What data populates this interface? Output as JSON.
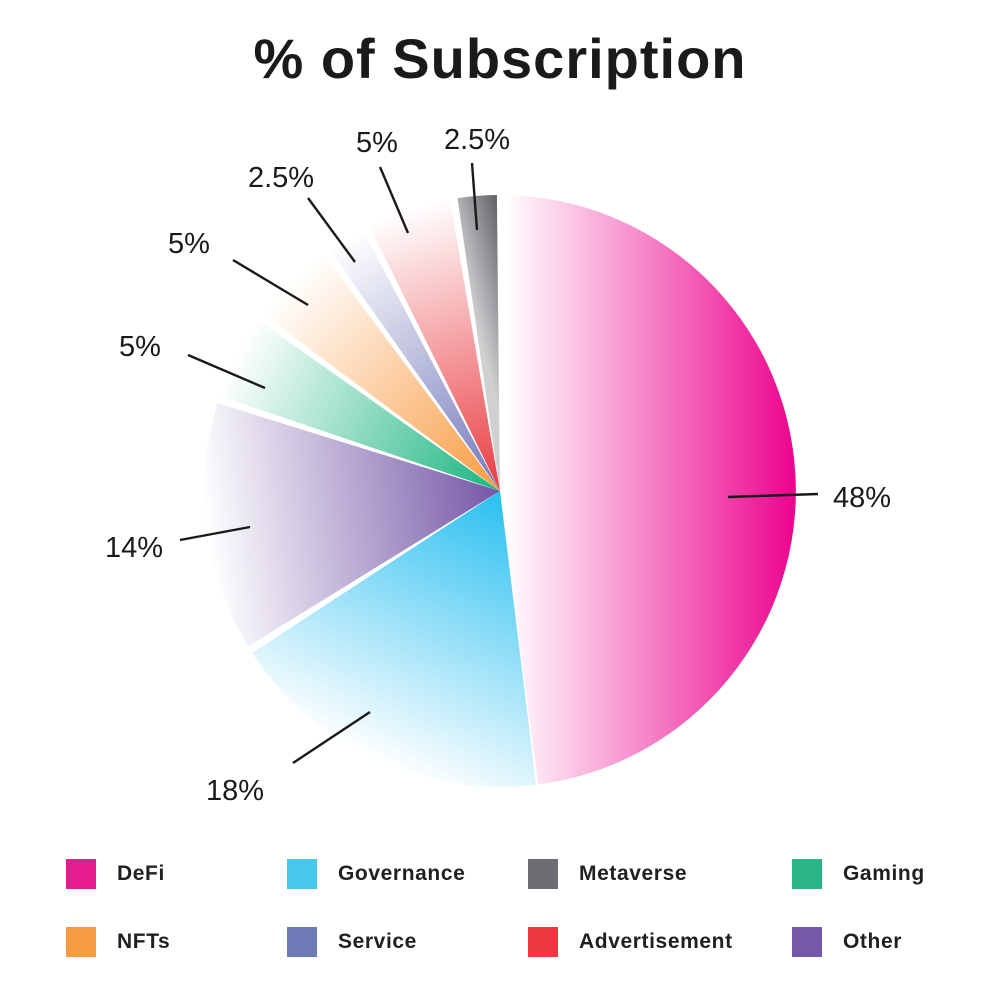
{
  "title": "% of Subscription",
  "colors": {
    "background": "#ffffff",
    "title_text": "#1a1a1a",
    "label_text": "#1a1a1a",
    "legend_text": "#231f20",
    "callout_line": "#1a1a1a"
  },
  "chart_data": {
    "type": "pie",
    "title": "% of Subscription",
    "direction": "clockwise",
    "start_angle_deg": 0,
    "grid": false,
    "series": [
      {
        "name": "DeFi",
        "value": 48,
        "label": "48%",
        "color": "#e61c8c",
        "gradient": [
          "#ffffff",
          "#ec008c"
        ]
      },
      {
        "name": "Governance",
        "value": 18,
        "label": "18%",
        "color": "#45c7ee",
        "gradient": [
          "#ffffff",
          "#29bff0"
        ]
      },
      {
        "name": "Other",
        "value": 14,
        "label": "14%",
        "color": "#7458aa",
        "gradient": [
          "#ffffff",
          "#7456a6"
        ]
      },
      {
        "name": "Gaming",
        "value": 5,
        "label": "5%",
        "color": "#2ab586",
        "gradient": [
          "#ffffff",
          "#18b57d"
        ]
      },
      {
        "name": "NFTs",
        "value": 5,
        "label": "5%",
        "color": "#f79b42",
        "gradient": [
          "#ffffff",
          "#f89b41"
        ]
      },
      {
        "name": "Service",
        "value": 2.5,
        "label": "2.5%",
        "color": "#6e79b8",
        "gradient": [
          "#ffffff",
          "#7277b9"
        ]
      },
      {
        "name": "Advertisement",
        "value": 5,
        "label": "5%",
        "color": "#ee3a3e",
        "gradient": [
          "#ffffff",
          "#e93a40"
        ]
      },
      {
        "name": "Metaverse",
        "value": 2.5,
        "label": "2.5%",
        "color": "#6d6e71",
        "gradient": [
          "#cfd0d2",
          "#4e4f53"
        ]
      }
    ],
    "legend": {
      "position": "bottom",
      "rows": 2,
      "columns": 4,
      "order": [
        "DeFi",
        "Governance",
        "Metaverse",
        "Gaming",
        "NFTs",
        "Service",
        "Advertisement",
        "Other"
      ]
    }
  }
}
